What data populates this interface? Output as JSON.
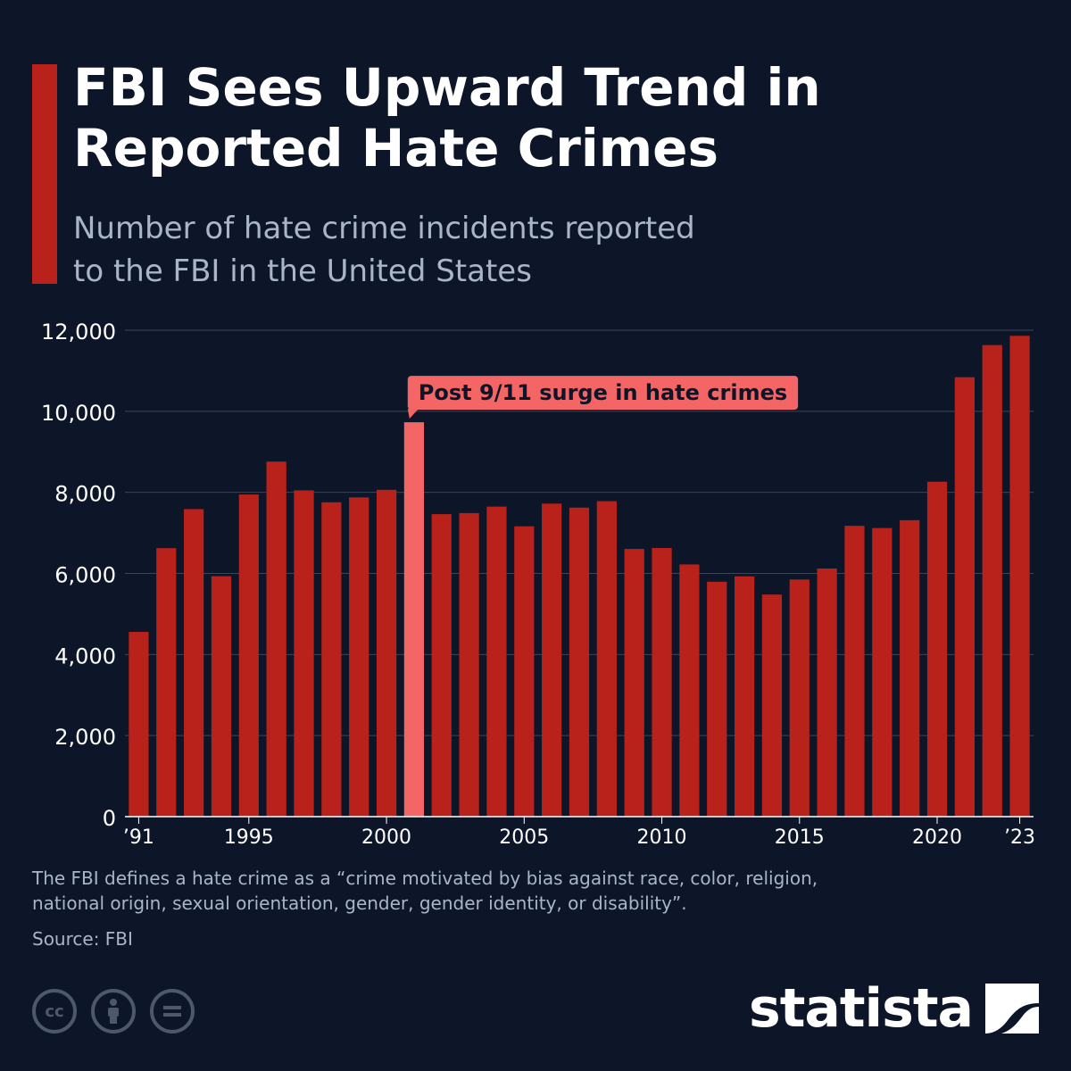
{
  "header": {
    "title_line1": "FBI Sees Upward Trend in",
    "title_line2": "Reported Hate Crimes",
    "subtitle_line1": "Number of hate crime incidents reported",
    "subtitle_line2": "to the FBI in the United States"
  },
  "colors": {
    "background": "#0d1628",
    "bar": "#b8221b",
    "highlight": "#f46565",
    "accent": "#b8221b",
    "grid": "#3a4558",
    "text_muted": "#a9b5c9"
  },
  "chart_data": {
    "type": "bar",
    "title": "FBI Sees Upward Trend in Reported Hate Crimes",
    "subtitle": "Number of hate crime incidents reported to the FBI in the United States",
    "xlabel": "",
    "ylabel": "",
    "categories": [
      "1991",
      "1992",
      "1993",
      "1994",
      "1995",
      "1996",
      "1997",
      "1998",
      "1999",
      "2000",
      "2001",
      "2002",
      "2003",
      "2004",
      "2005",
      "2006",
      "2007",
      "2008",
      "2009",
      "2010",
      "2011",
      "2012",
      "2013",
      "2014",
      "2015",
      "2016",
      "2017",
      "2018",
      "2019",
      "2020",
      "2021",
      "2022",
      "2023"
    ],
    "values": [
      4558,
      6623,
      7587,
      5932,
      7947,
      8759,
      8049,
      7755,
      7876,
      8063,
      9730,
      7462,
      7489,
      7649,
      7163,
      7722,
      7624,
      7783,
      6604,
      6628,
      6222,
      5796,
      5928,
      5479,
      5850,
      6121,
      7175,
      7120,
      7314,
      8263,
      10840,
      11634,
      11862
    ],
    "highlight_index": 10,
    "ylim": [
      0,
      12000
    ],
    "yticks": [
      0,
      2000,
      4000,
      6000,
      8000,
      10000,
      12000
    ],
    "ytick_labels": [
      "0",
      "2,000",
      "4,000",
      "6,000",
      "8,000",
      "10,000",
      "12,000"
    ],
    "xtick_labels": [
      {
        "index": 0,
        "label": "’91"
      },
      {
        "index": 4,
        "label": "1995"
      },
      {
        "index": 9,
        "label": "2000"
      },
      {
        "index": 14,
        "label": "2005"
      },
      {
        "index": 19,
        "label": "2010"
      },
      {
        "index": 24,
        "label": "2015"
      },
      {
        "index": 29,
        "label": "2020"
      },
      {
        "index": 32,
        "label": "’23"
      }
    ],
    "annotation": {
      "index": 10,
      "text": "Post 9/11 surge in hate crimes"
    },
    "grid": true
  },
  "footer": {
    "note_line1": "The FBI defines a hate crime as a “crime motivated by bias against race, color, religion,",
    "note_line2": "national origin, sexual orientation, gender, gender identity, or disability”.",
    "source": "Source: FBI",
    "cc_label": "cc",
    "brand": "statista"
  }
}
